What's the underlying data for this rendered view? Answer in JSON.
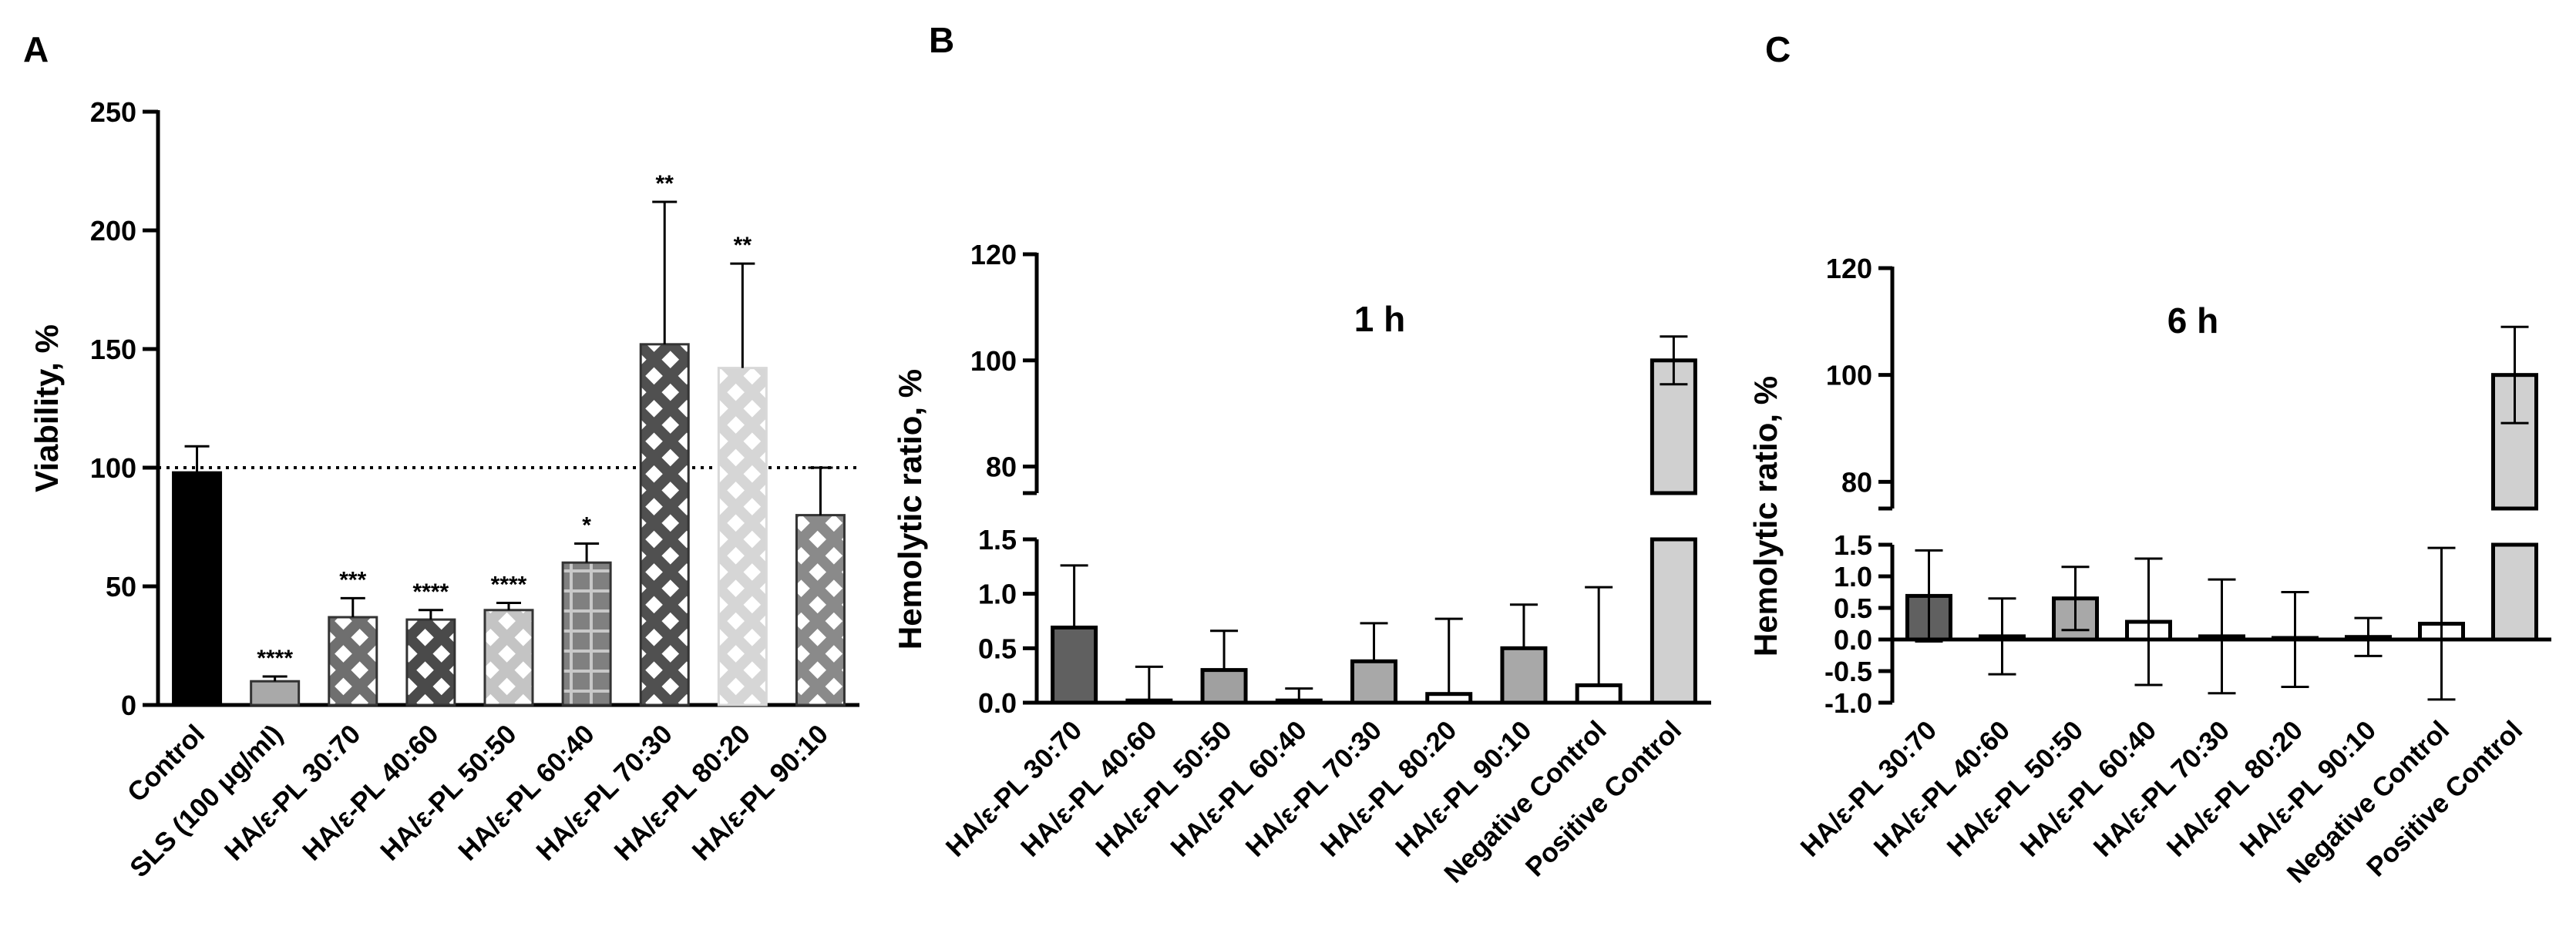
{
  "chart_data": [
    {
      "panel": "A",
      "type": "bar",
      "title": "",
      "xlabel": "",
      "ylabel": "Viability, %",
      "ylim": [
        0,
        250
      ],
      "yticks": [
        "0",
        "50",
        "100",
        "150",
        "200",
        "250"
      ],
      "reference_line": 100,
      "categories": [
        "Control",
        "SLS (100 μg/ml)",
        "HA/ε-PL 30:70",
        "HA/ε-PL 40:60",
        "HA/ε-PL 50:50",
        "HA/ε-PL 60:40",
        "HA/ε-PL 70:30",
        "HA/ε-PL 80:20",
        "HA/ε-PL 90:10"
      ],
      "values": [
        98,
        10,
        37,
        36,
        40,
        60,
        152,
        142,
        80
      ],
      "errors": [
        11,
        2,
        8,
        4,
        3,
        8,
        60,
        44,
        20
      ],
      "significance": [
        "",
        "****",
        "***",
        "****",
        "****",
        "*",
        "**",
        "**",
        ""
      ],
      "colors": [
        "#000000",
        "#a9a9a9",
        "#6f6f6f",
        "#4a4a4a",
        "#c4c4c4",
        "#808080",
        "#505050",
        "#d6d6d6",
        "#8a8a8a"
      ],
      "patterns": [
        "solid",
        "solid",
        "diamond",
        "diamond",
        "diamond",
        "grid",
        "diamond",
        "diamond",
        "diamond"
      ]
    },
    {
      "panel": "B",
      "type": "bar",
      "title": "1 h",
      "xlabel": "",
      "ylabel": "Hemolytic ratio, %",
      "broken_axis": true,
      "ylim_lower": [
        0,
        1.5
      ],
      "ylim_upper": [
        75,
        120
      ],
      "yticks_lower": [
        "0.0",
        "0.5",
        "1.0",
        "1.5"
      ],
      "yticks_upper": [
        "80",
        "100",
        "120"
      ],
      "categories": [
        "HA/ε-PL 30:70",
        "HA/ε-PL 40:60",
        "HA/ε-PL 50:50",
        "HA/ε-PL 60:40",
        "HA/ε-PL 70:30",
        "HA/ε-PL 80:20",
        "HA/ε-PL 90:10",
        "Negative Control",
        "Positive Control"
      ],
      "values": [
        0.69,
        0.02,
        0.3,
        0.02,
        0.38,
        0.08,
        0.5,
        0.16,
        100
      ],
      "errors": [
        0.57,
        0.31,
        0.36,
        0.11,
        0.35,
        0.69,
        0.4,
        0.9,
        4.5
      ],
      "colors": [
        "#606060",
        "#ffffff",
        "#a0a0a0",
        "#ffffff",
        "#a8a8a8",
        "#ffffff",
        "#a8a8a8",
        "#ffffff",
        "#d0d0d0"
      ]
    },
    {
      "panel": "C",
      "type": "bar",
      "title": "6 h",
      "xlabel": "",
      "ylabel": "Hemolytic ratio, %",
      "broken_axis": true,
      "ylim_lower": [
        -1.0,
        1.5
      ],
      "ylim_upper": [
        75,
        120
      ],
      "yticks_lower": [
        "-1.0",
        "-0.5",
        "0.0",
        "0.5",
        "1.0",
        "1.5"
      ],
      "yticks_upper": [
        "80",
        "100",
        "120"
      ],
      "categories": [
        "HA/ε-PL 30:70",
        "HA/ε-PL 40:60",
        "HA/ε-PL 50:50",
        "HA/ε-PL 60:40",
        "HA/ε-PL 70:30",
        "HA/ε-PL 80:20",
        "HA/ε-PL 90:10",
        "Negative Control",
        "Positive Control"
      ],
      "values": [
        0.69,
        0.05,
        0.65,
        0.28,
        0.05,
        0.0,
        0.04,
        0.25,
        100
      ],
      "errors": [
        0.72,
        0.6,
        0.5,
        1.0,
        0.9,
        0.75,
        0.3,
        1.2,
        9
      ],
      "colors": [
        "#606060",
        "#ffffff",
        "#a8a8a8",
        "#ffffff",
        "#ffffff",
        "#ffffff",
        "#ffffff",
        "#ffffff",
        "#d0d0d0"
      ]
    }
  ]
}
